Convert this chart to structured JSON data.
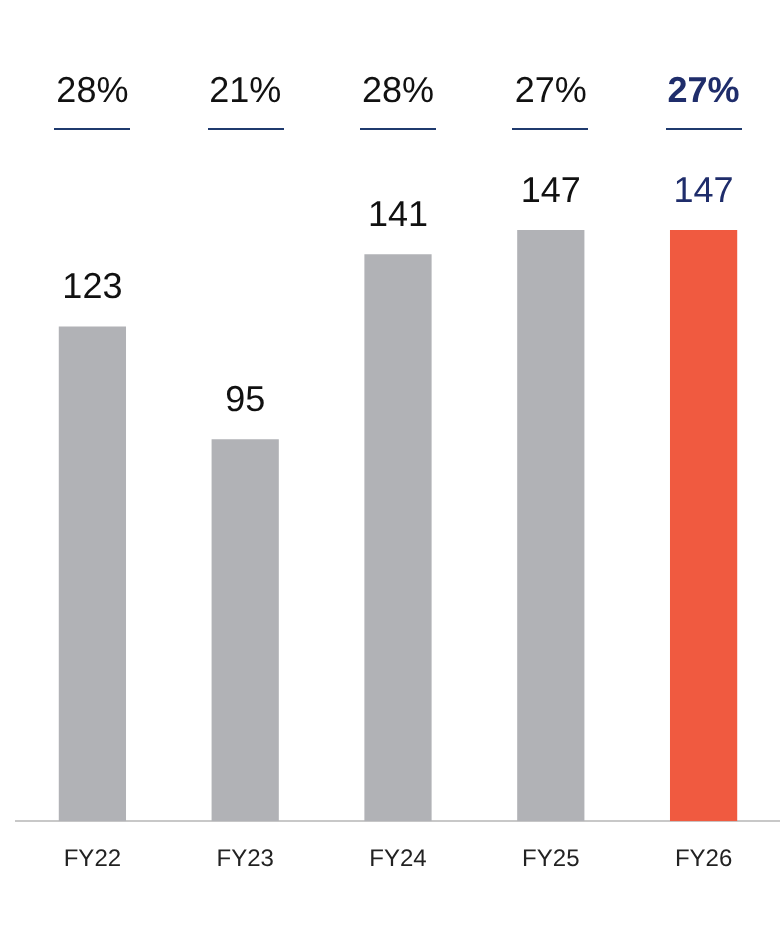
{
  "chart_data": {
    "type": "bar",
    "categories": [
      "FY22",
      "FY23",
      "FY24",
      "FY25",
      "FY26"
    ],
    "values": [
      123,
      95,
      141,
      147,
      147
    ],
    "colors": [
      "#b1b2b6",
      "#b1b2b6",
      "#b1b2b6",
      "#b1b2b6",
      "#f05a40"
    ],
    "data_labels": true,
    "grid": false,
    "legend": false,
    "annotations": [
      "28%",
      "21%",
      "28%",
      "27%",
      "27%"
    ]
  }
}
